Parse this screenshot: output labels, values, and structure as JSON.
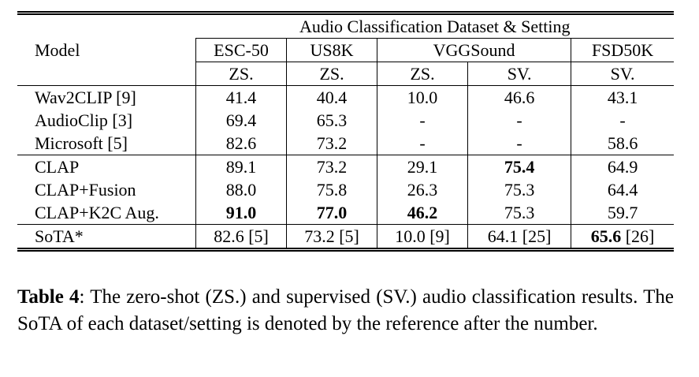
{
  "table": {
    "header": {
      "group": "Audio Classification Dataset & Setting",
      "model": "Model",
      "datasets": [
        "ESC-50",
        "US8K",
        "VGGSound",
        "FSD50K"
      ],
      "settings": [
        "ZS.",
        "ZS.",
        "ZS.",
        "SV.",
        "SV."
      ]
    },
    "sections": [
      {
        "rows": [
          {
            "model": "Wav2CLIP [9]",
            "cells": [
              "41.4",
              "40.4",
              "10.0",
              "46.6",
              "43.1"
            ]
          },
          {
            "model": "AudioClip [3]",
            "cells": [
              "69.4",
              "65.3",
              "-",
              "-",
              "-"
            ]
          },
          {
            "model": "Microsoft [5]",
            "cells": [
              "82.6",
              "73.2",
              "-",
              "-",
              "58.6"
            ]
          }
        ]
      },
      {
        "rows": [
          {
            "model": "CLAP",
            "cells": [
              "89.1",
              "73.2",
              "29.1",
              {
                "text": "75.4",
                "bold": true
              },
              "64.9"
            ]
          },
          {
            "model": "CLAP+Fusion",
            "cells": [
              "88.0",
              "75.8",
              "26.3",
              "75.3",
              "64.4"
            ]
          },
          {
            "model": "CLAP+K2C Aug.",
            "cells": [
              {
                "text": "91.0",
                "bold": true
              },
              {
                "text": "77.0",
                "bold": true
              },
              {
                "text": "46.2",
                "bold": true
              },
              "75.3",
              "59.7"
            ]
          }
        ]
      },
      {
        "rows": [
          {
            "model": "SoTA*",
            "cells": [
              "82.6 [5]",
              "73.2 [5]",
              "10.0 [9]",
              "64.1 [25]",
              {
                "text": "65.6",
                "bold": true,
                "suffix": "[26]"
              }
            ]
          }
        ]
      }
    ]
  },
  "caption": {
    "label": "Table 4",
    "text": ": The zero-shot (ZS.) and supervised (SV.) audio classification results. The SoTA of each dataset/setting is denoted by the reference after the number."
  }
}
